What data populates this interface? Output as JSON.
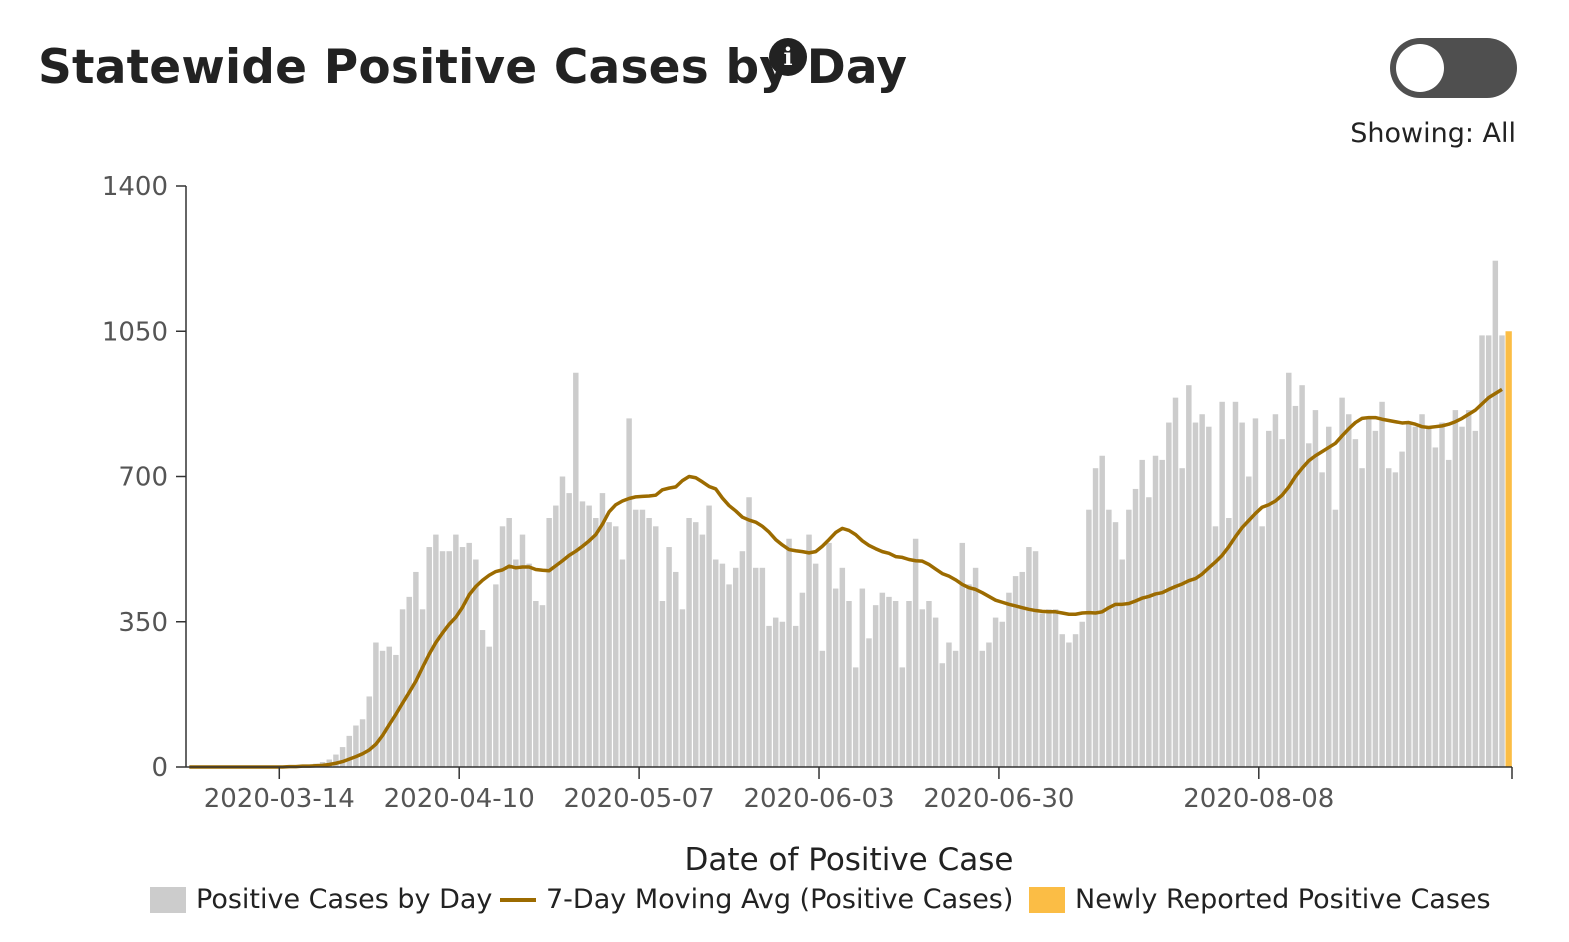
{
  "header": {
    "title": "Statewide Positive Cases by Day",
    "info_icon": "info-icon",
    "toggle_state": "off",
    "showing_label": "Showing: All"
  },
  "colors": {
    "bars": "#cccccc",
    "moving_avg": "#9c6b00",
    "newly_reported": "#fbbd45",
    "axis": "#333333",
    "toggle_track": "#4f4f4f"
  },
  "chart_data": {
    "type": "bar",
    "xlabel": "Date of Positive Case",
    "ylabel": "",
    "ylim": [
      0,
      1400
    ],
    "yticks": [
      0,
      350,
      700,
      1050,
      1400
    ],
    "x_tick_labels": [
      "2020-03-14",
      "2020-04-10",
      "2020-05-07",
      "2020-06-03",
      "2020-06-30",
      "2020-08-08"
    ],
    "start_date": "2020-02-29",
    "grid": false,
    "legend_position": "bottom",
    "series": [
      {
        "name": "Positive Cases by Day",
        "kind": "bar",
        "values": [
          0,
          0,
          0,
          0,
          0,
          0,
          0,
          0,
          0,
          0,
          0,
          0,
          0,
          0,
          1,
          2,
          3,
          4,
          6,
          8,
          12,
          18,
          30,
          48,
          75,
          100,
          115,
          170,
          300,
          280,
          290,
          270,
          380,
          410,
          470,
          380,
          530,
          560,
          520,
          520,
          560,
          530,
          540,
          500,
          330,
          290,
          440,
          580,
          600,
          500,
          560,
          490,
          400,
          390,
          600,
          630,
          700,
          660,
          950,
          640,
          630,
          600,
          660,
          590,
          580,
          500,
          840,
          620,
          620,
          600,
          580,
          400,
          530,
          470,
          380,
          600,
          590,
          560,
          630,
          500,
          490,
          440,
          480,
          520,
          650,
          480,
          480,
          340,
          360,
          350,
          550,
          340,
          420,
          560,
          490,
          280,
          540,
          430,
          480,
          400,
          240,
          430,
          310,
          390,
          420,
          410,
          400,
          240,
          400,
          550,
          380,
          400,
          360,
          250,
          300,
          280,
          540,
          440,
          480,
          280,
          300,
          360,
          350,
          420,
          460,
          470,
          530,
          520,
          370,
          380,
          380,
          320,
          300,
          320,
          350,
          620,
          720,
          750,
          620,
          590,
          500,
          620,
          670,
          740,
          650,
          750,
          740,
          830,
          890,
          720,
          920,
          830,
          850,
          820,
          580,
          880,
          600,
          880,
          830,
          700,
          840,
          580,
          810,
          850,
          790,
          950,
          870,
          920,
          780,
          860,
          710,
          820,
          620,
          890,
          850,
          790,
          720,
          840,
          810,
          880,
          720,
          710,
          760,
          830,
          820,
          850,
          820,
          770,
          830,
          740,
          860,
          820,
          860,
          810,
          1040,
          1040,
          1220,
          1040
        ]
      },
      {
        "name": "7-Day Moving Avg (Positive Cases)",
        "kind": "line",
        "values": [
          0,
          0,
          0,
          0,
          0,
          0,
          0,
          0,
          0,
          0,
          0,
          0,
          0,
          0,
          0,
          1,
          1,
          2,
          2,
          3,
          4,
          6,
          9,
          13,
          19,
          25,
          32,
          41,
          55,
          76,
          102,
          127,
          154,
          180,
          207,
          240,
          272,
          300,
          323,
          344,
          361,
          385,
          415,
          435,
          450,
          462,
          471,
          475,
          484,
          480,
          482,
          482,
          476,
          474,
          473,
          485,
          497,
          510,
          520,
          532,
          545,
          560,
          585,
          615,
          632,
          641,
          647,
          651,
          652,
          653,
          655,
          668,
          672,
          675,
          690,
          700,
          697,
          687,
          676,
          670,
          648,
          630,
          617,
          602,
          595,
          590,
          580,
          566,
          548,
          535,
          524,
          521,
          519,
          516,
          519,
          532,
          548,
          565,
          575,
          570,
          560,
          545,
          534,
          526,
          519,
          515,
          507,
          505,
          500,
          497,
          496,
          488,
          477,
          466,
          460,
          451,
          440,
          432,
          428,
          420,
          411,
          402,
          397,
          392,
          388,
          384,
          380,
          377,
          375,
          374,
          374,
          371,
          368,
          368,
          371,
          372,
          371,
          374,
          384,
          392,
          392,
          394,
          400,
          407,
          411,
          417,
          420,
          428,
          435,
          441,
          449,
          454,
          465,
          480,
          494,
          510,
          531,
          555,
          577,
          594,
          611,
          626,
          632,
          641,
          655,
          675,
          700,
          720,
          738,
          750,
          760,
          770,
          780,
          798,
          815,
          830,
          840,
          842,
          842,
          838,
          835,
          832,
          829,
          830,
          826,
          820,
          818,
          820,
          822,
          826,
          832,
          840,
          850,
          860,
          875,
          890,
          900,
          910
        ]
      },
      {
        "name": "Newly Reported Positive Cases",
        "kind": "bar",
        "values": [
          1050
        ]
      }
    ]
  },
  "legend": {
    "items": [
      {
        "label": "Positive Cases by Day",
        "color": "#cccccc"
      },
      {
        "label": "7-Day Moving Avg (Positive Cases)",
        "color": "#9c6b00"
      },
      {
        "label": "Newly Reported Positive Cases",
        "color": "#fbbd45"
      }
    ]
  }
}
